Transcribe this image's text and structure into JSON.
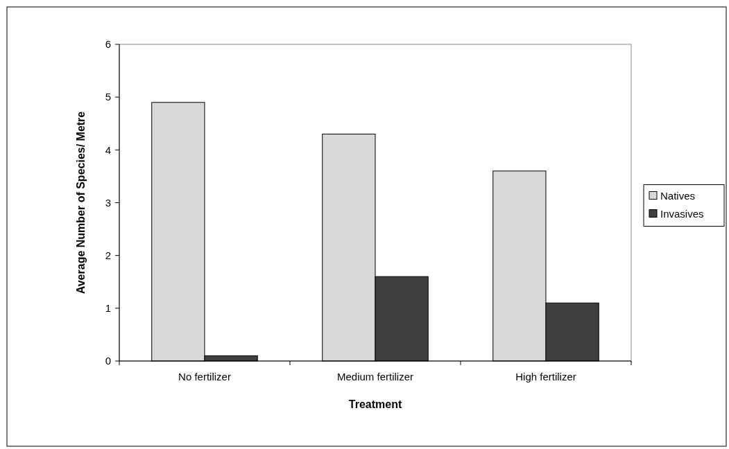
{
  "chart_data": {
    "type": "bar",
    "xlabel": "Treatment",
    "ylabel": "Average Number of Species/ Metre",
    "categories": [
      "No fertilizer",
      "Medium fertilizer",
      "High fertilizer"
    ],
    "series": [
      {
        "name": "Natives",
        "color": "#d9d9d9",
        "values": [
          4.9,
          4.3,
          3.6
        ]
      },
      {
        "name": "Invasives",
        "color": "#404040",
        "values": [
          0.1,
          1.6,
          1.1
        ]
      }
    ],
    "ylim": [
      0,
      6
    ],
    "yticks": [
      0,
      1,
      2,
      3,
      4,
      5,
      6
    ],
    "grid": false,
    "legend": "right"
  }
}
